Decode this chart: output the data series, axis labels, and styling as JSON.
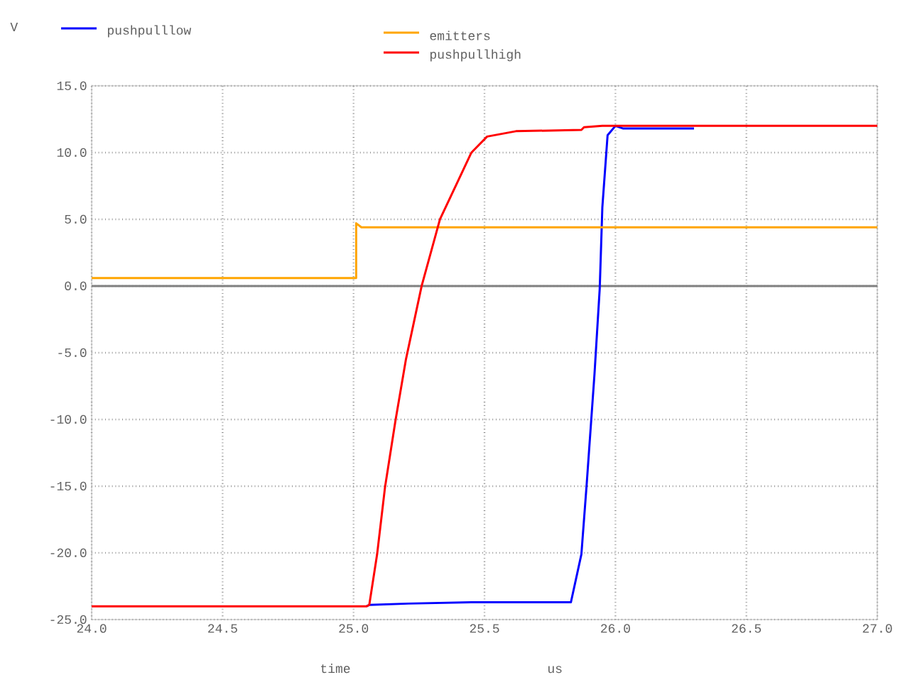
{
  "chart_data": {
    "type": "line",
    "ylabel": "V",
    "xlabel": "time",
    "annotations": [
      "us"
    ],
    "xlim": [
      24,
      27
    ],
    "ylim": [
      -25,
      15
    ],
    "xticks": [
      {
        "value": 24,
        "label": "24.0"
      },
      {
        "value": 24.5,
        "label": "24.5"
      },
      {
        "value": 25,
        "label": "25.0"
      },
      {
        "value": 25.5,
        "label": "25.5"
      },
      {
        "value": 26,
        "label": "26.0"
      },
      {
        "value": 26.5,
        "label": "26.5"
      },
      {
        "value": 27,
        "label": "27.0"
      }
    ],
    "yticks": [
      {
        "value": -25,
        "label": "-25.0"
      },
      {
        "value": -20,
        "label": "-20.0"
      },
      {
        "value": -15,
        "label": "-15.0"
      },
      {
        "value": -10,
        "label": "-10.0"
      },
      {
        "value": -5,
        "label": "-5.0"
      },
      {
        "value": 0,
        "label": "0.0"
      },
      {
        "value": 5,
        "label": "5.0"
      },
      {
        "value": 10,
        "label": "10.0"
      },
      {
        "value": 15,
        "label": "15.0"
      }
    ],
    "grid": true,
    "legend": "top",
    "line_style": "solid",
    "ref_lines": [
      {
        "axis": "y",
        "value": 0,
        "color": "#808080"
      }
    ],
    "series": [
      {
        "name": "pushpulllow",
        "color": "#0000ff",
        "x": [
          25.05,
          25.06,
          25.21,
          25.45,
          25.83,
          25.87,
          25.89,
          25.92,
          25.94,
          25.95,
          25.97,
          26.0,
          26.03,
          26.3
        ],
        "values": [
          -24.0,
          -23.9,
          -23.8,
          -23.7,
          -23.7,
          -20.1,
          -14.9,
          -6.6,
          -0.2,
          5.9,
          11.3,
          12.0,
          11.8,
          11.8
        ]
      },
      {
        "name": "emitters",
        "color": "#ffa500",
        "x": [
          24.0,
          25.01,
          25.01,
          25.03,
          27.0
        ],
        "values": [
          0.6,
          0.6,
          4.7,
          4.4,
          4.4
        ]
      },
      {
        "name": "pushpullhigh",
        "color": "#ff0000",
        "x": [
          24.0,
          25.05,
          25.06,
          25.09,
          25.12,
          25.16,
          25.2,
          25.26,
          25.33,
          25.45,
          25.51,
          25.62,
          25.87,
          25.88,
          25.95,
          27.0
        ],
        "values": [
          -24.0,
          -24.0,
          -23.9,
          -20.1,
          -15.1,
          -10.1,
          -5.5,
          0.0,
          5.0,
          10.0,
          11.2,
          11.6,
          11.7,
          11.9,
          12.0,
          12.0
        ]
      }
    ]
  }
}
